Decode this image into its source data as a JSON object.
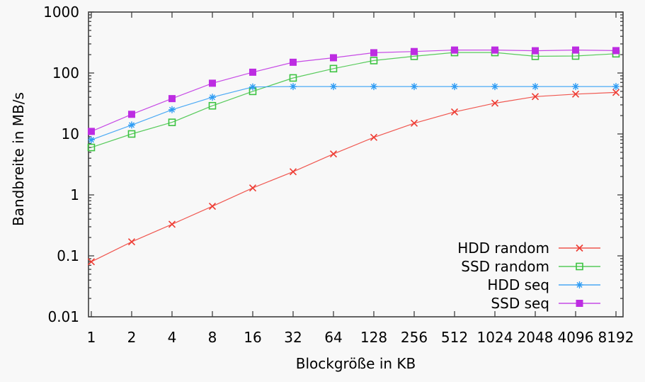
{
  "colors": {
    "background": "#f8f8f8",
    "frame": "#404040",
    "text": "#000000"
  },
  "chart_data": {
    "type": "line",
    "title": "",
    "xlabel": "Blockgröße in KB",
    "ylabel": "Bandbreite in MB/s",
    "x_scale": "log2",
    "y_scale": "log10",
    "grid": false,
    "legend_position": "inside-bottom-right",
    "xlim": [
      0.953,
      9250
    ],
    "ylim": [
      0.01,
      1000
    ],
    "x_ticks": [
      1,
      2,
      4,
      8,
      16,
      32,
      64,
      128,
      256,
      512,
      1024,
      2048,
      4096,
      8192
    ],
    "x_tick_labels": [
      "1",
      "2",
      "4",
      "8",
      "16",
      "32",
      "64",
      "128",
      "256",
      "512",
      "1024",
      "2048",
      "4096",
      "8192"
    ],
    "y_ticks": [
      0.01,
      0.1,
      1,
      10,
      100,
      1000
    ],
    "y_tick_labels": [
      "0.01",
      "0.1",
      "1",
      "10",
      "100",
      "1000"
    ],
    "x": [
      1,
      2,
      4,
      8,
      16,
      32,
      64,
      128,
      256,
      512,
      1024,
      2048,
      4096,
      8192
    ],
    "series": [
      {
        "name": "HDD random",
        "color": "#ee3b32",
        "marker": "x",
        "values": [
          0.08,
          0.17,
          0.33,
          0.65,
          1.3,
          2.4,
          4.7,
          8.8,
          15,
          23,
          32,
          41,
          45,
          48
        ]
      },
      {
        "name": "SSD random",
        "color": "#3cc341",
        "marker": "open-square",
        "values": [
          6,
          10,
          15.5,
          29,
          50,
          83,
          118,
          160,
          188,
          217,
          217,
          188,
          190,
          207
        ]
      },
      {
        "name": "HDD seq",
        "color": "#2e9cf4",
        "marker": "asterisk",
        "values": [
          8,
          14,
          25,
          40,
          59,
          60,
          60,
          60,
          60,
          60,
          60,
          60,
          60,
          60
        ]
      },
      {
        "name": "SSD seq",
        "color": "#bd2ce2",
        "marker": "filled-square",
        "values": [
          11,
          21,
          38,
          68,
          103,
          150,
          178,
          215,
          225,
          238,
          238,
          232,
          238,
          233
        ]
      }
    ]
  }
}
